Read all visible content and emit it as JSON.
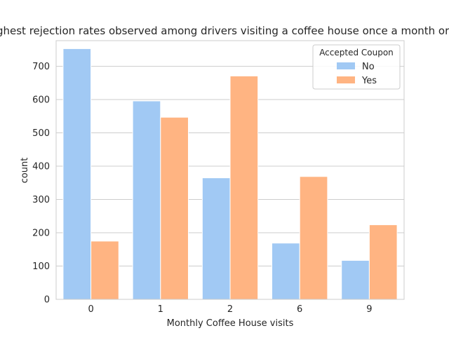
{
  "chart_data": {
    "type": "bar",
    "title": "ighest rejection rates observed among drivers visiting a coffee house once a month or l",
    "xlabel": "Monthly Coffee House visits",
    "ylabel": "count",
    "categories": [
      "0",
      "1",
      "2",
      "6",
      "9"
    ],
    "series": [
      {
        "name": "No",
        "values": [
          753,
          596,
          365,
          169,
          117
        ],
        "color": "#a1c9f4"
      },
      {
        "name": "Yes",
        "values": [
          175,
          547,
          671,
          369,
          224
        ],
        "color": "#ffb482"
      }
    ],
    "ylim": [
      0,
      777
    ],
    "yticks": [
      0,
      100,
      200,
      300,
      400,
      500,
      600,
      700
    ],
    "grid": "horizontal",
    "legend": {
      "title": "Accepted Coupon",
      "placement": "top-right"
    }
  }
}
